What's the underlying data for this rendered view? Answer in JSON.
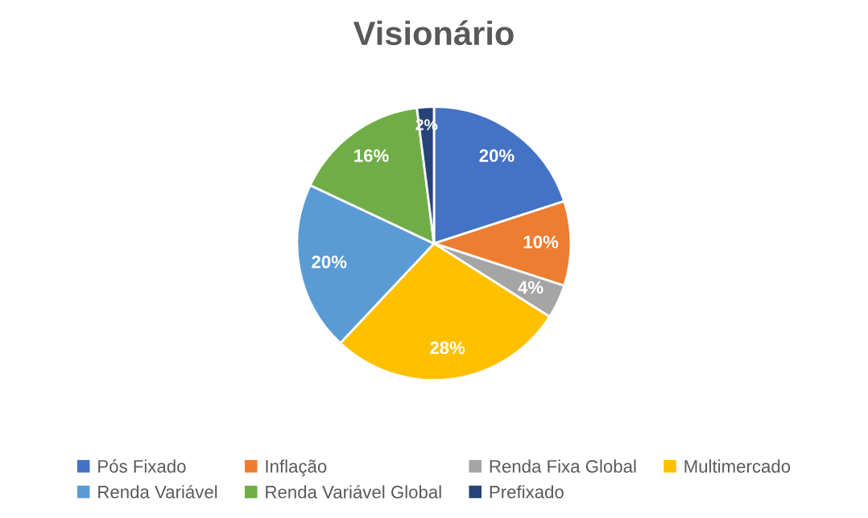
{
  "chart_data": {
    "type": "pie",
    "title": "Visionário",
    "categories": [
      "Pós Fixado",
      "Inflação",
      "Renda Fixa Global",
      "Multimercado",
      "Renda Variável",
      "Renda Variável Global",
      "Prefixado"
    ],
    "values": [
      20,
      10,
      4,
      28,
      20,
      16,
      2
    ],
    "value_labels": [
      "20%",
      "10%",
      "4%",
      "28%",
      "20%",
      "16%",
      "2%"
    ],
    "colors": [
      "#4472c4",
      "#ed7d31",
      "#a5a5a5",
      "#ffc000",
      "#5b9bd5",
      "#70ad47",
      "#264478"
    ],
    "legend": "bottom"
  }
}
